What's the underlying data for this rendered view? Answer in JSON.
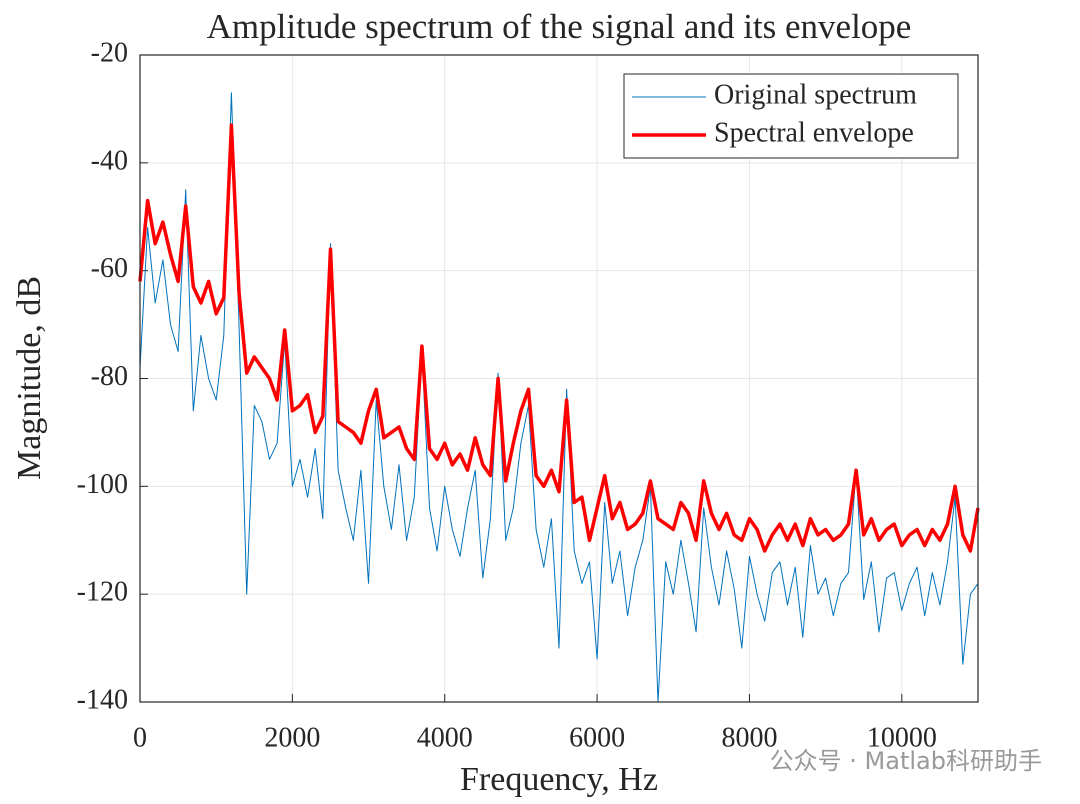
{
  "chart_data": {
    "type": "line",
    "title": "Amplitude spectrum of the signal and its envelope",
    "xlabel": "Frequency, Hz",
    "ylabel": "Magnitude, dB",
    "watermark": "公众号 · Matlab科研助手",
    "x": [
      0,
      100,
      200,
      300,
      400,
      500,
      600,
      700,
      800,
      900,
      1000,
      1100,
      1200,
      1300,
      1400,
      1500,
      1600,
      1700,
      1800,
      1900,
      2000,
      2100,
      2200,
      2300,
      2400,
      2500,
      2600,
      2700,
      2800,
      2900,
      3000,
      3100,
      3200,
      3300,
      3400,
      3500,
      3600,
      3700,
      3800,
      3900,
      4000,
      4100,
      4200,
      4300,
      4400,
      4500,
      4600,
      4700,
      4800,
      4900,
      5000,
      5100,
      5200,
      5300,
      5400,
      5500,
      5600,
      5700,
      5800,
      5900,
      6000,
      6100,
      6200,
      6300,
      6400,
      6500,
      6600,
      6700,
      6800,
      6900,
      7000,
      7100,
      7200,
      7300,
      7400,
      7500,
      7600,
      7700,
      7800,
      7900,
      8000,
      8100,
      8200,
      8300,
      8400,
      8500,
      8600,
      8700,
      8800,
      8900,
      9000,
      9100,
      9200,
      9300,
      9400,
      9500,
      9600,
      9700,
      9800,
      9900,
      10000,
      10100,
      10200,
      10300,
      10400,
      10500,
      10600,
      10700,
      10800,
      10900,
      11000
    ],
    "series": [
      {
        "name": "Original spectrum",
        "color": "#0072bd",
        "width": 1,
        "values": [
          -78,
          -52,
          -66,
          -58,
          -70,
          -75,
          -45,
          -86,
          -72,
          -80,
          -84,
          -72,
          -27,
          -70,
          -120,
          -85,
          -88,
          -95,
          -92,
          -73,
          -100,
          -95,
          -102,
          -93,
          -106,
          -55,
          -97,
          -104,
          -110,
          -97,
          -118,
          -84,
          -100,
          -108,
          -96,
          -110,
          -102,
          -75,
          -104,
          -112,
          -100,
          -108,
          -113,
          -104,
          -97,
          -117,
          -106,
          -79,
          -110,
          -104,
          -92,
          -85,
          -108,
          -115,
          -106,
          -130,
          -82,
          -112,
          -118,
          -114,
          -132,
          -103,
          -118,
          -112,
          -124,
          -115,
          -110,
          -100,
          -140,
          -114,
          -120,
          -110,
          -118,
          -127,
          -104,
          -115,
          -122,
          -112,
          -119,
          -130,
          -113,
          -120,
          -125,
          -116,
          -114,
          -122,
          -115,
          -128,
          -111,
          -120,
          -117,
          -124,
          -118,
          -116,
          -97,
          -121,
          -114,
          -127,
          -117,
          -116,
          -123,
          -118,
          -115,
          -124,
          -116,
          -122,
          -114,
          -102,
          -133,
          -120,
          -118
        ]
      },
      {
        "name": "Spectral envelope",
        "color": "#ff0000",
        "width": 3.5,
        "values": [
          -62,
          -47,
          -55,
          -51,
          -57,
          -62,
          -48,
          -63,
          -66,
          -62,
          -68,
          -65,
          -33,
          -64,
          -79,
          -76,
          -78,
          -80,
          -84,
          -71,
          -86,
          -85,
          -83,
          -90,
          -87,
          -56,
          -88,
          -89,
          -90,
          -92,
          -86,
          -82,
          -91,
          -90,
          -89,
          -93,
          -95,
          -74,
          -93,
          -95,
          -92,
          -96,
          -94,
          -97,
          -91,
          -96,
          -98,
          -80,
          -99,
          -92,
          -86,
          -82,
          -98,
          -100,
          -97,
          -101,
          -84,
          -103,
          -102,
          -110,
          -104,
          -98,
          -106,
          -103,
          -108,
          -107,
          -105,
          -99,
          -106,
          -107,
          -108,
          -103,
          -105,
          -110,
          -99,
          -105,
          -108,
          -105,
          -109,
          -110,
          -106,
          -108,
          -112,
          -109,
          -107,
          -110,
          -107,
          -111,
          -106,
          -109,
          -108,
          -110,
          -109,
          -107,
          -97,
          -109,
          -106,
          -110,
          -108,
          -107,
          -111,
          -109,
          -108,
          -111,
          -108,
          -110,
          -107,
          -100,
          -109,
          -112,
          -104
        ]
      }
    ],
    "xlim": [
      0,
      11000
    ],
    "xticks": [
      0,
      2000,
      4000,
      6000,
      8000,
      10000
    ],
    "ylim": [
      -140,
      -20
    ],
    "yticks": [
      -140,
      -120,
      -100,
      -80,
      -60,
      -40,
      -20
    ],
    "grid": true,
    "legend": "upper right"
  }
}
